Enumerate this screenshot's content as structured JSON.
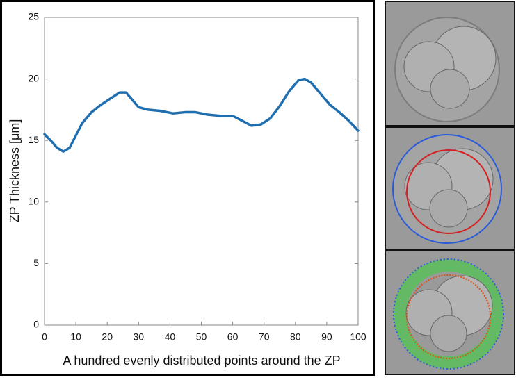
{
  "chart_data": {
    "type": "line",
    "xlabel": "A hundred evenly distributed points around the ZP",
    "ylabel": "ZP Thickness [μm]",
    "x": [
      0,
      2,
      4,
      6,
      8,
      10,
      12,
      15,
      18,
      21,
      24,
      26,
      28,
      30,
      33,
      37,
      41,
      45,
      48,
      52,
      56,
      60,
      63,
      66,
      69,
      72,
      75,
      78,
      81,
      83,
      85,
      88,
      91,
      94,
      97,
      100
    ],
    "series": [
      {
        "name": "ZP thickness",
        "color": "#1f6fb0",
        "values": [
          15.5,
          15.0,
          14.4,
          14.1,
          14.4,
          15.4,
          16.4,
          17.3,
          17.9,
          18.4,
          18.9,
          18.9,
          18.3,
          17.7,
          17.5,
          17.4,
          17.2,
          17.3,
          17.3,
          17.1,
          17.0,
          17.0,
          16.6,
          16.2,
          16.3,
          16.8,
          17.8,
          19.0,
          19.9,
          20.0,
          19.7,
          18.8,
          17.9,
          17.3,
          16.6,
          15.8
        ]
      }
    ],
    "xlim": [
      0,
      100
    ],
    "xticks": [
      0,
      10,
      20,
      30,
      40,
      50,
      60,
      70,
      80,
      90,
      100
    ],
    "ylim": [
      0,
      25
    ],
    "yticks": [
      0,
      5,
      10,
      15,
      20,
      25
    ]
  }
}
